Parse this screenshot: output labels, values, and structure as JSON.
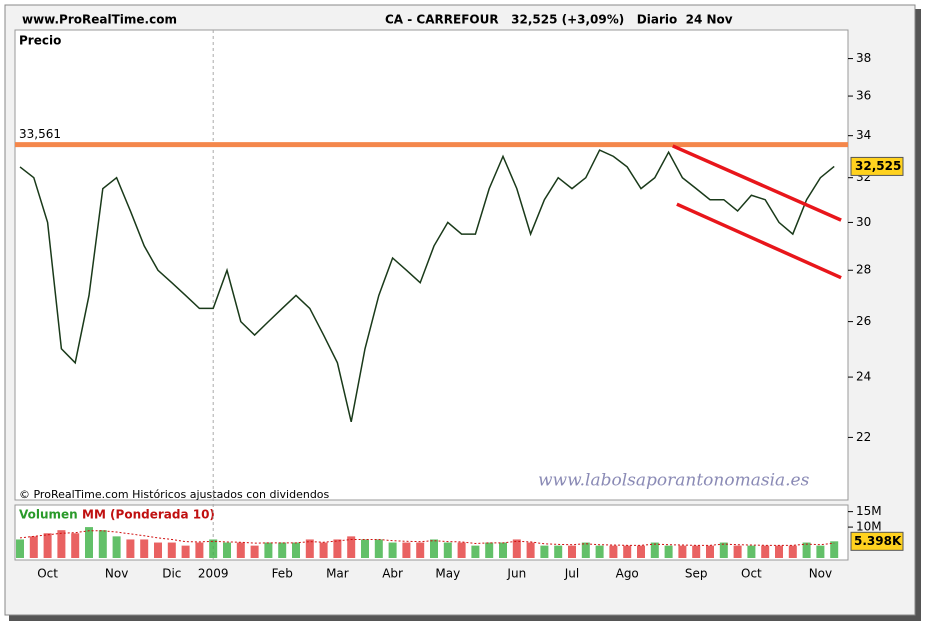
{
  "chart_data": [
    {
      "type": "line",
      "site": "www.ProRealTime.com",
      "title": "CA - CARREFOUR   32,525 (+3,09%)   Diario  24 Nov",
      "panel_label": "Precio",
      "footnote": "© ProRealTime.com Históricos ajustados con dividendos",
      "watermark": "www.labolsaporantonomasia.es",
      "categories": [
        "",
        null,
        "Oct",
        null,
        null,
        null,
        null,
        "Nov",
        null,
        null,
        null,
        "Dic",
        null,
        null,
        "2009",
        null,
        null,
        null,
        null,
        "Feb",
        null,
        null,
        null,
        "Mar",
        null,
        null,
        null,
        "Abr",
        null,
        null,
        null,
        "May",
        null,
        null,
        null,
        null,
        "Jun",
        null,
        null,
        null,
        "Jul",
        null,
        null,
        null,
        "Ago",
        null,
        null,
        null,
        null,
        "Sep",
        null,
        null,
        null,
        "Oct",
        null,
        null,
        null,
        null,
        "Nov",
        null
      ],
      "series": [
        {
          "name": "Precio",
          "color": "#1a3a1a",
          "values": [
            32.5,
            32,
            30,
            25,
            24.5,
            27,
            31.5,
            32,
            30.5,
            29,
            28,
            27.5,
            27,
            26.5,
            26.5,
            28,
            26,
            25.5,
            26,
            26.5,
            27,
            26.5,
            25.5,
            24.5,
            22.5,
            25,
            27,
            28.5,
            28,
            27.5,
            29,
            30,
            29.5,
            29.5,
            31.5,
            33,
            31.5,
            29.5,
            31,
            32,
            31.5,
            32,
            33.3,
            33,
            32.5,
            31.5,
            32,
            33.2,
            32,
            31.5,
            31,
            31,
            30.5,
            31.2,
            31,
            30,
            29.5,
            31,
            32,
            32.525
          ]
        }
      ],
      "last": 32.525,
      "last_label": "32,525",
      "resistance": 33.561,
      "resistance_label": "33,561",
      "resistance_color": "#f4874b",
      "trendlines": [
        {
          "x": [
            47.3,
            59.5
          ],
          "y": [
            33.5,
            30.1
          ]
        },
        {
          "x": [
            47.6,
            59.5
          ],
          "y": [
            30.8,
            27.7
          ]
        }
      ],
      "trendline_color": "#e8161b",
      "ylim": [
        20.1,
        39.6
      ],
      "log": true,
      "yticks": [
        22,
        24,
        26,
        28,
        30,
        32,
        34,
        36,
        38
      ]
    },
    {
      "type": "bar",
      "title": "Volumen",
      "ma_title": "MM (Ponderada 10)",
      "up_color": "#3cb043",
      "down_color": "#e33b3b",
      "series": [
        {
          "name": "Volumen",
          "values": [
            6000000,
            7000000,
            8000000,
            9000000,
            8000000,
            10000000,
            9000000,
            7000000,
            6000000,
            6000000,
            5000000,
            5000000,
            4000000,
            5000000,
            6000000,
            5000000,
            5000000,
            4000000,
            5000000,
            5000000,
            5000000,
            6000000,
            5000000,
            6000000,
            7000000,
            6000000,
            6000000,
            5000000,
            5000000,
            5000000,
            6000000,
            5000000,
            5000000,
            4000000,
            5000000,
            5000000,
            6000000,
            5000000,
            4000000,
            4000000,
            4000000,
            5000000,
            4000000,
            4000000,
            4000000,
            4000000,
            5000000,
            4000000,
            4000000,
            4000000,
            4000000,
            5000000,
            4000000,
            4000000,
            4000000,
            4000000,
            4000000,
            5000000,
            4000000,
            5398000
          ]
        },
        {
          "name": "MM (Ponderada 10)",
          "color": "#d01010",
          "values": [
            6500000,
            7000000,
            7500000,
            8000000,
            8200000,
            8800000,
            8800000,
            8400000,
            7800000,
            7200000,
            6500000,
            6000000,
            5300000,
            5200000,
            5400000,
            5200000,
            5100000,
            4800000,
            4900000,
            4900000,
            4900000,
            5300000,
            5100000,
            5500000,
            6000000,
            6000000,
            6000000,
            5600000,
            5400000,
            5300000,
            5600000,
            5300000,
            5200000,
            4700000,
            4900000,
            4900000,
            5400000,
            5200000,
            4600000,
            4400000,
            4300000,
            4600000,
            4300000,
            4200000,
            4100000,
            4100000,
            4500000,
            4300000,
            4200000,
            4100000,
            4100000,
            4500000,
            4300000,
            4200000,
            4100000,
            4100000,
            4100000,
            4500000,
            4300000,
            4800000
          ]
        }
      ],
      "last_label": "5.398K",
      "ylim": [
        0,
        16500000
      ],
      "yticks": [
        {
          "value": 10000000,
          "label": "10M"
        },
        {
          "value": 15000000,
          "label": "15M"
        }
      ]
    }
  ]
}
